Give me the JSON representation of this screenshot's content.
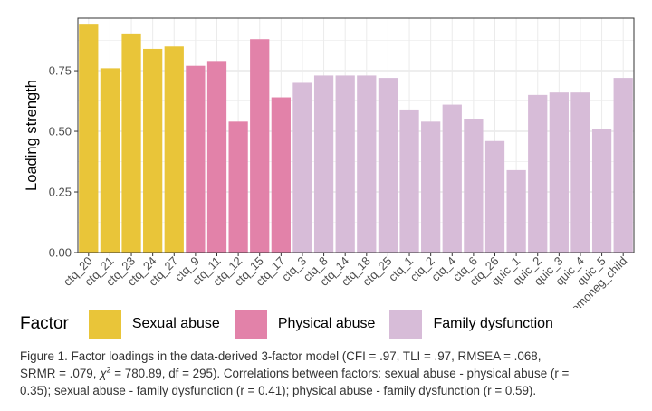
{
  "chart_data": {
    "type": "bar",
    "xlabel": "",
    "ylabel": "Loading strength",
    "ylim": [
      0,
      0.9667
    ],
    "yticks": [
      "0.00",
      "0.25",
      "0.50",
      "0.75"
    ],
    "grid": true,
    "categories": [
      "ctq_20",
      "ctq_21",
      "ctq_23",
      "ctq_24",
      "ctq_27",
      "ctq_9",
      "ctq_11",
      "ctq_12",
      "ctq_15",
      "ctq_17",
      "ctq_3",
      "ctq_8",
      "ctq_14",
      "ctq_18",
      "ctq_25",
      "ctq_1",
      "ctq_2",
      "ctq_4",
      "ctq_6",
      "ctq_26",
      "quic_1",
      "quic_2",
      "quic_3",
      "quic_4",
      "quic_5",
      "emoneg_child"
    ],
    "values": [
      0.94,
      0.76,
      0.9,
      0.84,
      0.85,
      0.77,
      0.79,
      0.54,
      0.88,
      0.64,
      0.7,
      0.73,
      0.73,
      0.73,
      0.72,
      0.59,
      0.54,
      0.61,
      0.55,
      0.46,
      0.34,
      0.65,
      0.66,
      0.66,
      0.51,
      0.72
    ],
    "groups": [
      0,
      0,
      0,
      0,
      0,
      1,
      1,
      1,
      1,
      1,
      2,
      2,
      2,
      2,
      2,
      2,
      2,
      2,
      2,
      2,
      2,
      2,
      2,
      2,
      2,
      2
    ]
  },
  "legend": {
    "title": "Factor",
    "items": [
      {
        "label": "Sexual abuse",
        "color": "#E9C539"
      },
      {
        "label": "Physical abuse",
        "color": "#E282A9"
      },
      {
        "label": "Family dysfunction",
        "color": "#D7BCD8"
      }
    ]
  },
  "caption": {
    "line1": "Figure 1. Factor loadings in the data-derived 3-factor model (CFI = .97, TLI = .97, RMSEA = .068,",
    "line2_pre": "SRMR = .079, ",
    "chi": "χ",
    "chi_sup": "2",
    "line2_post": " = 780.89, df = 295). Correlations between factors: sexual abuse - physical abuse (r =",
    "line3": "0.35); sexual abuse - family dysfunction (r = 0.41); physical abuse - family dysfunction (r = 0.59)."
  }
}
